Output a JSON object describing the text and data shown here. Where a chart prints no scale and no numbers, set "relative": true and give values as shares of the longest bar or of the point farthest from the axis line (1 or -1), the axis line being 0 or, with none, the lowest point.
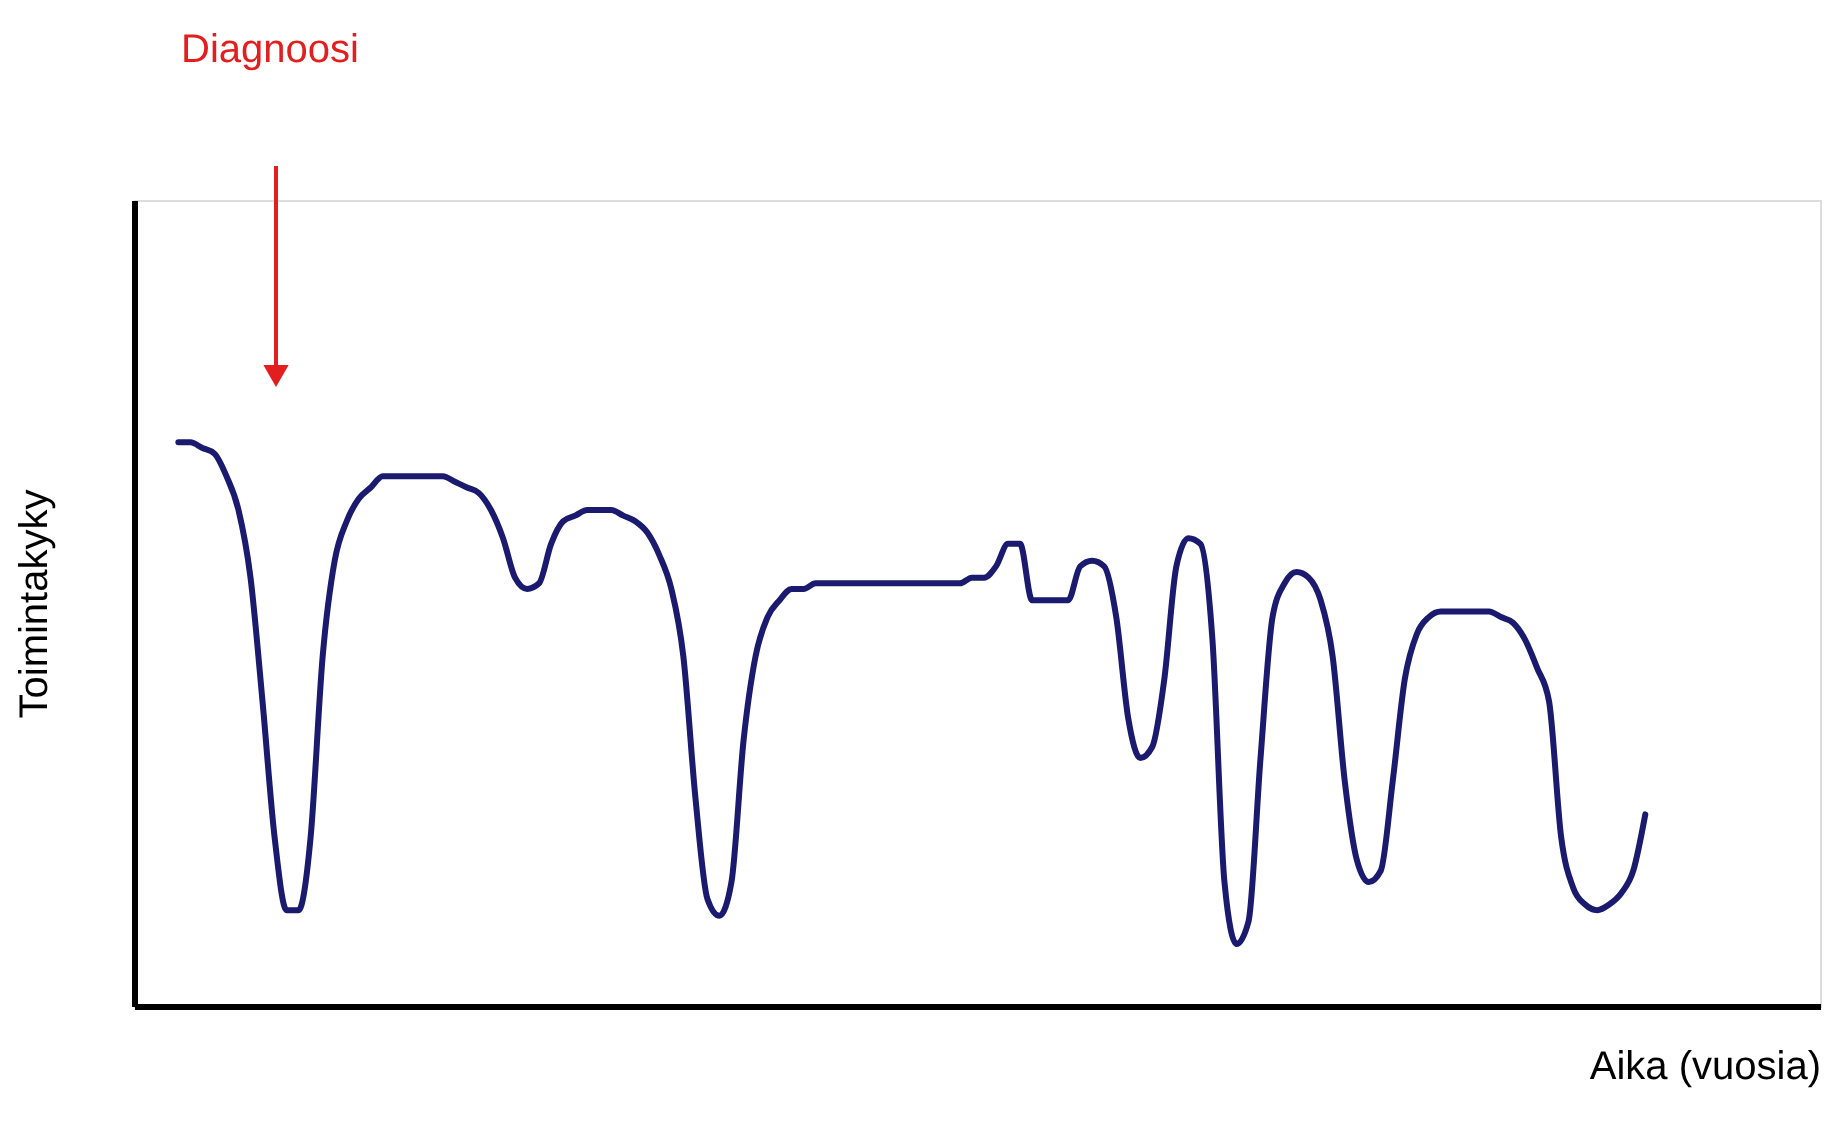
{
  "chart_data": {
    "type": "line",
    "relative": true,
    "xlabel": "Aika (vuosia)",
    "ylabel": "Toimintakyky",
    "color": "#1a1a6e",
    "annotations": [
      "Diagnoosi"
    ],
    "categories": [
      null,
      null,
      null,
      null,
      null,
      null,
      null,
      null,
      null,
      null,
      null,
      null,
      null,
      null,
      null,
      null,
      null,
      null,
      null,
      null,
      null,
      null,
      null,
      null,
      null,
      null,
      null,
      null,
      null,
      null,
      null,
      null,
      null,
      null,
      null,
      null,
      null,
      null,
      null,
      null,
      null,
      null,
      null,
      null,
      null,
      null,
      null,
      null,
      null,
      null,
      null,
      null,
      null,
      null,
      null,
      null,
      null,
      null,
      null,
      null,
      null,
      null,
      null,
      null,
      null,
      null,
      null,
      null,
      null,
      null,
      null,
      null,
      null,
      null,
      null,
      null,
      null,
      null,
      null,
      null,
      null,
      null,
      null,
      null,
      null,
      null,
      null,
      null,
      null,
      null,
      null,
      null,
      null,
      null,
      null,
      null,
      null,
      null,
      null,
      null,
      null,
      null,
      null,
      null,
      null,
      null,
      null,
      null,
      null,
      null,
      null,
      null,
      null,
      null,
      null,
      null,
      null,
      null,
      null,
      null,
      null,
      null,
      null
    ],
    "values": [
      1.0,
      1.0,
      0.99,
      0.98,
      0.94,
      0.88,
      0.76,
      0.54,
      0.3,
      0.17,
      0.17,
      0.3,
      0.62,
      0.79,
      0.86,
      0.9,
      0.92,
      0.94,
      0.94,
      0.94,
      0.94,
      0.94,
      0.94,
      0.93,
      0.92,
      0.91,
      0.88,
      0.83,
      0.76,
      0.74,
      0.75,
      0.82,
      0.86,
      0.87,
      0.88,
      0.88,
      0.88,
      0.87,
      0.86,
      0.84,
      0.8,
      0.74,
      0.62,
      0.37,
      0.19,
      0.16,
      0.22,
      0.47,
      0.62,
      0.69,
      0.72,
      0.74,
      0.74,
      0.75,
      0.75,
      0.75,
      0.75,
      0.75,
      0.75,
      0.75,
      0.75,
      0.75,
      0.75,
      0.75,
      0.75,
      0.75,
      0.76,
      0.76,
      0.78,
      0.82,
      0.82,
      0.72,
      0.72,
      0.72,
      0.72,
      0.78,
      0.79,
      0.78,
      0.69,
      0.51,
      0.44,
      0.46,
      0.58,
      0.78,
      0.83,
      0.82,
      0.65,
      0.22,
      0.11,
      0.15,
      0.44,
      0.69,
      0.75,
      0.77,
      0.76,
      0.72,
      0.62,
      0.4,
      0.26,
      0.22,
      0.24,
      0.4,
      0.58,
      0.66,
      0.69,
      0.7,
      0.7,
      0.7,
      0.7,
      0.7,
      0.69,
      0.68,
      0.65,
      0.6,
      0.54,
      0.3,
      0.21,
      0.18,
      0.17,
      0.18,
      0.2,
      0.24,
      0.34
    ]
  }
}
